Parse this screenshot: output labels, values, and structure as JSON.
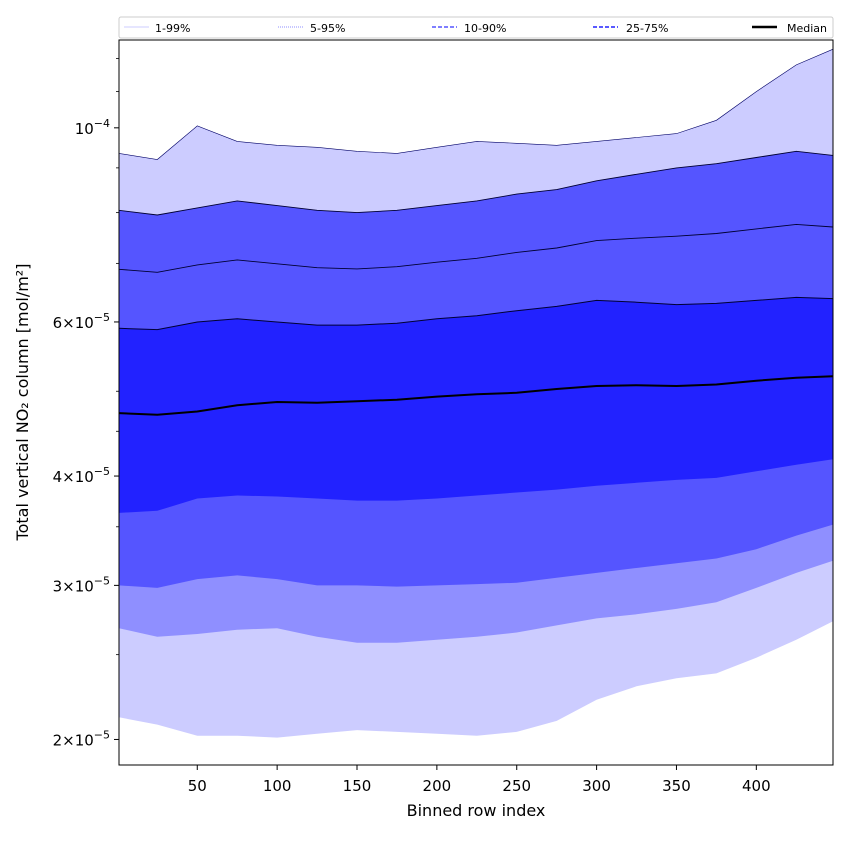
{
  "chart_data": {
    "type": "area",
    "xlabel": "Binned row index",
    "ylabel": "Total vertical NO₂ column [mol/m²]",
    "xlim": [
      1,
      448
    ],
    "ylim": [
      1.87e-05,
      0.000126
    ],
    "yscale": "log",
    "x_ticks": [
      50,
      100,
      150,
      200,
      250,
      300,
      350,
      400
    ],
    "y_ticks": [
      {
        "value": 2e-05,
        "mantissa": "2",
        "base": "10",
        "exp": "−5"
      },
      {
        "value": 3e-05,
        "mantissa": "3",
        "base": "10",
        "exp": "−5"
      },
      {
        "value": 4e-05,
        "mantissa": "4",
        "base": "10",
        "exp": "−5"
      },
      {
        "value": 6e-05,
        "mantissa": "6",
        "base": "10",
        "exp": "−5"
      },
      {
        "value": 0.0001,
        "mantissa": "",
        "base": "10",
        "exp": "−4"
      }
    ],
    "legend_placement": "top",
    "legend": [
      {
        "label": "1-99%",
        "style": "thin-solid",
        "color": "#ccccff"
      },
      {
        "label": "5-95%",
        "style": "thin-dotted",
        "color": "#8f8fff"
      },
      {
        "label": "10-90%",
        "style": "dashed",
        "color": "#5555ff"
      },
      {
        "label": "25-75%",
        "style": "dashed",
        "color": "#2222ff"
      },
      {
        "label": "Median",
        "style": "solid",
        "color": "#000000"
      }
    ],
    "x": [
      1,
      25,
      50,
      75,
      100,
      125,
      150,
      175,
      200,
      225,
      250,
      275,
      300,
      325,
      350,
      375,
      400,
      425,
      448
    ],
    "series": [
      {
        "name": "1-99%",
        "color": "#ccccff",
        "lower": [
          2.12e-05,
          2.08e-05,
          2.02e-05,
          2.02e-05,
          2.01e-05,
          2.03e-05,
          2.05e-05,
          2.04e-05,
          2.03e-05,
          2.02e-05,
          2.04e-05,
          2.1e-05,
          2.22e-05,
          2.3e-05,
          2.35e-05,
          2.38e-05,
          2.48e-05,
          2.6e-05,
          2.73e-05
        ],
        "upper": [
          9.35e-05,
          9.2e-05,
          0.0001005,
          9.65e-05,
          9.55e-05,
          9.5e-05,
          9.4e-05,
          9.35e-05,
          9.5e-05,
          9.65e-05,
          9.6e-05,
          9.55e-05,
          9.65e-05,
          9.75e-05,
          9.85e-05,
          0.000102,
          0.00011,
          0.000118,
          0.000123
        ]
      },
      {
        "name": "5-95%",
        "color": "#8f8fff",
        "lower": [
          2.68e-05,
          2.62e-05,
          2.64e-05,
          2.67e-05,
          2.68e-05,
          2.62e-05,
          2.58e-05,
          2.58e-05,
          2.6e-05,
          2.62e-05,
          2.65e-05,
          2.7e-05,
          2.75e-05,
          2.78e-05,
          2.82e-05,
          2.87e-05,
          2.98e-05,
          3.1e-05,
          3.2e-05
        ]
      },
      {
        "name": "10-90%",
        "color": "#5555ff",
        "lower": [
          3e-05,
          2.98e-05,
          3.05e-05,
          3.08e-05,
          3.05e-05,
          3e-05,
          3e-05,
          2.99e-05,
          3e-05,
          3.01e-05,
          3.02e-05,
          3.06e-05,
          3.1e-05,
          3.14e-05,
          3.18e-05,
          3.22e-05,
          3.3e-05,
          3.42e-05,
          3.52e-05
        ],
        "upper": [
          8.05e-05,
          7.95e-05,
          8.1e-05,
          8.25e-05,
          8.15e-05,
          8.05e-05,
          8e-05,
          8.05e-05,
          8.15e-05,
          8.25e-05,
          8.4e-05,
          8.5e-05,
          8.7e-05,
          8.85e-05,
          9e-05,
          9.1e-05,
          9.25e-05,
          9.4e-05,
          9.3e-05
        ]
      },
      {
        "name": "25-75%",
        "color": "#2222ff",
        "lower": [
          3.63e-05,
          3.65e-05,
          3.77e-05,
          3.8e-05,
          3.79e-05,
          3.77e-05,
          3.75e-05,
          3.75e-05,
          3.77e-05,
          3.8e-05,
          3.83e-05,
          3.86e-05,
          3.9e-05,
          3.93e-05,
          3.96e-05,
          3.98e-05,
          4.05e-05,
          4.12e-05,
          4.18e-05
        ],
        "upper": [
          5.9e-05,
          5.88e-05,
          6e-05,
          6.05e-05,
          6e-05,
          5.95e-05,
          5.95e-05,
          5.98e-05,
          6.05e-05,
          6.1e-05,
          6.18e-05,
          6.25e-05,
          6.35e-05,
          6.32e-05,
          6.28e-05,
          6.3e-05,
          6.35e-05,
          6.4e-05,
          6.38e-05
        ]
      },
      {
        "name": "Median",
        "color": "#000000",
        "values": [
          4.72e-05,
          4.7e-05,
          4.74e-05,
          4.82e-05,
          4.86e-05,
          4.85e-05,
          4.87e-05,
          4.89e-05,
          4.93e-05,
          4.96e-05,
          4.98e-05,
          5.03e-05,
          5.07e-05,
          5.08e-05,
          5.07e-05,
          5.09e-05,
          5.14e-05,
          5.18e-05,
          5.2e-05
        ]
      }
    ],
    "grid": false
  }
}
